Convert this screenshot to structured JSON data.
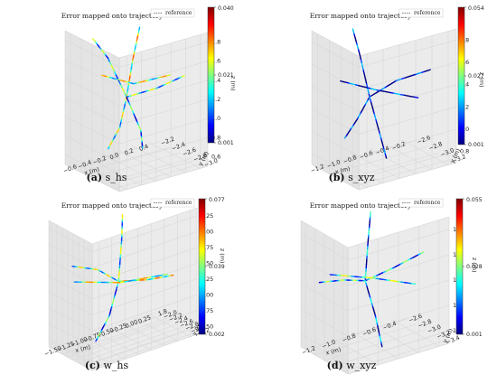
{
  "chart_data": [
    {
      "type": "line",
      "subtype": "3d-trajectory",
      "title": "Error mapped onto trajectory",
      "legend": "reference",
      "caption_label": "(a)",
      "caption_text": "s_hs",
      "xlabel": "x (m)",
      "ylabel": "y (m)",
      "zlabel": "z (m)",
      "x_ticks": [
        "−0.6",
        "−0.4",
        "−0.2",
        "0.0",
        "0.2",
        "0.4"
      ],
      "y_ticks": [
        "−2.2",
        "−2.4",
        "−2.6",
        "−2.8",
        "−3.0"
      ],
      "z_ticks": [
        "1.8",
        "1.6",
        "1.4",
        "1.2",
        "1.0",
        "0.8",
        "0.6"
      ],
      "colorbar": {
        "max": "0.040",
        "mid": "0.021",
        "min": "0.001"
      }
    },
    {
      "type": "line",
      "subtype": "3d-trajectory",
      "title": "Error mapped onto trajectory",
      "legend": "reference",
      "caption_label": "(b)",
      "caption_text": "s_xyz",
      "xlabel": "x (m)",
      "ylabel": "y (m)",
      "zlabel": "z (m)",
      "x_ticks": [
        "−1.2",
        "−1.0",
        "−0.8",
        "−0.6",
        "−0.4",
        "−0.2"
      ],
      "y_ticks": [
        "−2.6",
        "−2.8",
        "−3.0",
        "−3.2"
      ],
      "z_ticks": [
        "1.8",
        "1.6",
        "1.4",
        "1.2",
        "1.0",
        "0.8"
      ],
      "colorbar": {
        "max": "0.054",
        "mid": "0.027",
        "min": "0.001"
      }
    },
    {
      "type": "line",
      "subtype": "3d-trajectory",
      "title": "Error mapped onto trajectory",
      "legend": "reference",
      "caption_label": "(c)",
      "caption_text": "w_hs",
      "xlabel": "x (m)",
      "ylabel": "y (m)",
      "zlabel": "z (m)",
      "x_ticks": [
        "−1.50",
        "−1.25",
        "−1.00",
        "−0.75",
        "−0.50",
        "−0.25",
        "0.00",
        "0.25"
      ],
      "y_ticks": [
        "1.8",
        "−2.0",
        "−2.2",
        "−2.4",
        "−2.6",
        "−2.8",
        "−3.0",
        "−3.2"
      ],
      "z_ticks": [
        "2.25",
        "2.00",
        "1.75",
        "1.50",
        "1.25",
        "1.00",
        "0.75",
        "0.50"
      ],
      "colorbar": {
        "max": "0.077",
        "mid": "0.039",
        "min": "0.002"
      }
    },
    {
      "type": "line",
      "subtype": "3d-trajectory",
      "title": "Error mapped onto trajectory",
      "legend": "reference",
      "caption_label": "(d)",
      "caption_text": "w_xyz",
      "xlabel": "x (m)",
      "ylabel": "y (m)",
      "zlabel": "z (m)",
      "x_ticks": [
        "−1.2",
        "−1.0",
        "−0.8",
        "−0.6",
        "−0.4"
      ],
      "y_ticks": [
        "−2.6",
        "−2.8",
        "−3.0",
        "−3.2",
        "−3.4"
      ],
      "z_ticks": [
        "1.8",
        "1.6",
        "1.4",
        "1.2",
        "1.0"
      ],
      "colorbar": {
        "max": "0.055",
        "mid": "0.028",
        "min": "0.001"
      }
    }
  ],
  "colors": {
    "colormap": [
      "#000080",
      "#0000ff",
      "#0080ff",
      "#00ffff",
      "#80ff80",
      "#ffff00",
      "#ff8000",
      "#ff0000",
      "#800000"
    ],
    "reference": "#555555",
    "pane": "#f2f2f2",
    "grid": "#d8d8d8"
  }
}
